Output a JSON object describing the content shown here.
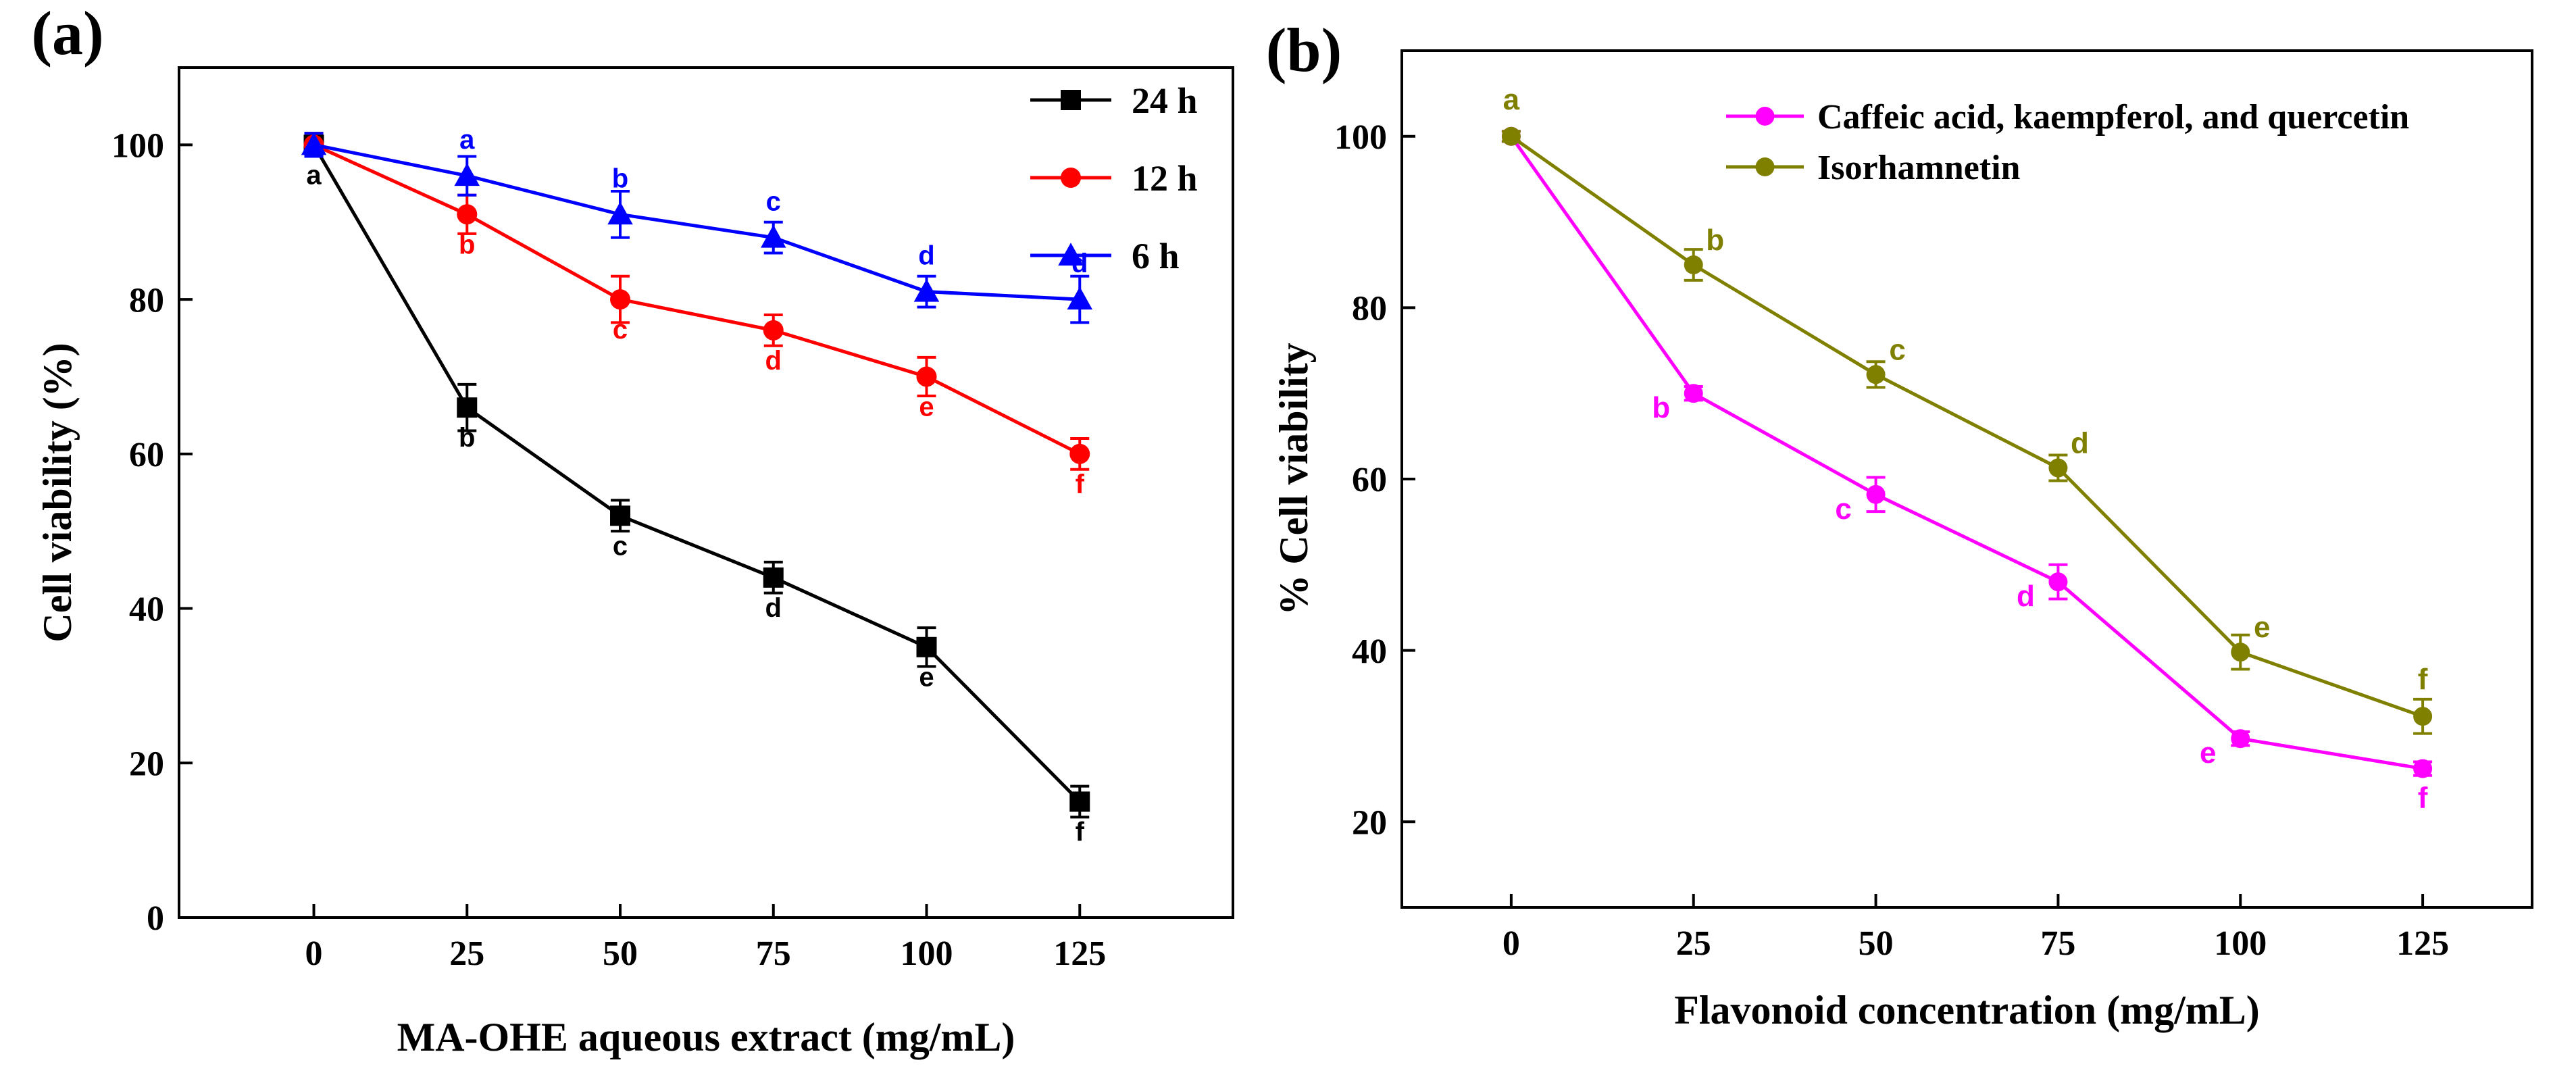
{
  "chart_data": [
    {
      "type": "line",
      "panel_label": "(a)",
      "title": "",
      "xlabel": "MA-OHE aqueous extract (mg/mL)",
      "ylabel": "Cell viability (%)",
      "xlim": [
        -22,
        150
      ],
      "ylim": [
        0,
        110
      ],
      "x": [
        0,
        25,
        50,
        75,
        100,
        125
      ],
      "xticks": [
        0,
        25,
        50,
        75,
        100,
        125
      ],
      "yticks": [
        0,
        20,
        40,
        60,
        80,
        100
      ],
      "legend_position": "top-right",
      "series": [
        {
          "name": "24 h",
          "color": "#000000",
          "marker": "square",
          "values": [
            100,
            66,
            52,
            44,
            35,
            15
          ],
          "errors": [
            1.5,
            3,
            2,
            2,
            2.5,
            2
          ],
          "letters": [
            "a",
            "b",
            "c",
            "d",
            "e",
            "f"
          ],
          "letter_pos": [
            "below",
            "below",
            "below",
            "below",
            "below",
            "below"
          ]
        },
        {
          "name": "12 h",
          "color": "#ff0000",
          "marker": "circle",
          "values": [
            100,
            91,
            80,
            76,
            70,
            60
          ],
          "errors": [
            1.5,
            2.5,
            3,
            2,
            2.5,
            2
          ],
          "letters": [
            "",
            "b",
            "c",
            "d",
            "e",
            "f"
          ],
          "letter_pos": [
            "below",
            "below",
            "below",
            "below",
            "below",
            "below"
          ]
        },
        {
          "name": "6 h",
          "color": "#0000ff",
          "marker": "triangle",
          "values": [
            100,
            96,
            91,
            88,
            81,
            80
          ],
          "errors": [
            1.5,
            2.5,
            3,
            2,
            2,
            3
          ],
          "letters": [
            "",
            "a",
            "b",
            "c",
            "d",
            "d"
          ],
          "letter_pos": [
            "above",
            "above",
            "above",
            "above",
            "above",
            "above"
          ]
        }
      ]
    },
    {
      "type": "line",
      "panel_label": "(b)",
      "title": "",
      "xlabel": "Flavonoid concentration (mg/mL)",
      "ylabel": "% Cell viability",
      "xlim": [
        -15,
        140
      ],
      "ylim": [
        10,
        110
      ],
      "x": [
        0,
        25,
        50,
        75,
        100,
        125
      ],
      "xticks": [
        0,
        25,
        50,
        75,
        100,
        125
      ],
      "yticks": [
        20,
        40,
        60,
        80,
        100
      ],
      "legend_position": "top-right",
      "series": [
        {
          "name": "Caffeic acid, kaempferol, and quercetin",
          "color": "#ff00ff",
          "marker": "circle",
          "values": [
            100,
            70,
            58.2,
            48,
            29.7,
            26.2
          ],
          "errors": [
            0.6,
            0.8,
            2,
            2,
            0.8,
            0.8
          ],
          "letters": [
            "",
            "b",
            "c",
            "d",
            "e",
            "f"
          ],
          "letter_pos": [
            "below-left",
            "below-left",
            "below-left",
            "below-left",
            "below-left",
            "below"
          ]
        },
        {
          "name": "Isorhamnetin",
          "color": "#808000",
          "marker": "circle",
          "values": [
            100,
            85,
            72.2,
            61.3,
            39.8,
            32.3
          ],
          "errors": [
            0.6,
            1.8,
            1.5,
            1.5,
            2,
            2
          ],
          "letters": [
            "a",
            "b",
            "c",
            "d",
            "e",
            "f"
          ],
          "letter_pos": [
            "above",
            "above-right",
            "above-right",
            "above-right",
            "above-right",
            "above"
          ]
        }
      ]
    }
  ]
}
